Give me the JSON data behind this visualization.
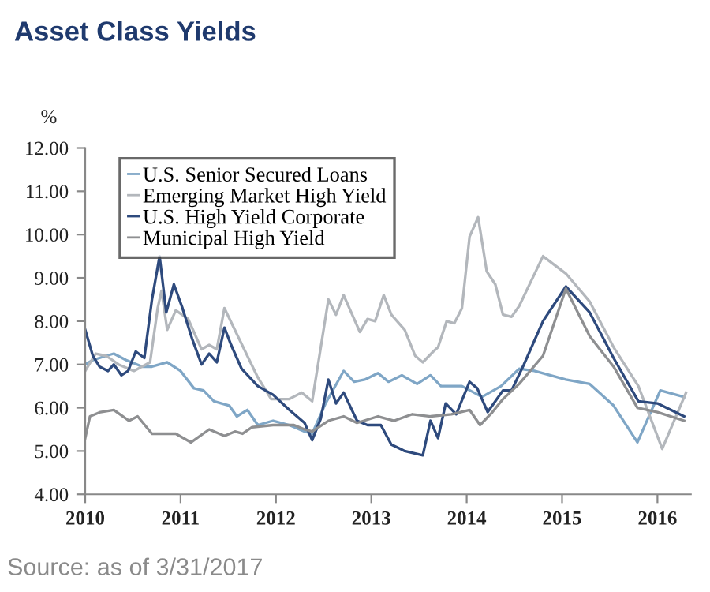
{
  "chart_data": {
    "type": "line",
    "title": "Asset Class Yields",
    "ylabel": "%",
    "annotations": [
      "Source: as of 3/31/2017"
    ],
    "xlim": [
      2010,
      2016.35
    ],
    "xticks": [
      2010,
      2011,
      2012,
      2013,
      2014,
      2015,
      2016
    ],
    "ylim": [
      4,
      12
    ],
    "yticks": [
      {
        "value": 4,
        "label": "4.00"
      },
      {
        "value": 5,
        "label": "5.00"
      },
      {
        "value": 6,
        "label": "6.00"
      },
      {
        "value": 7,
        "label": "7.00"
      },
      {
        "value": 8,
        "label": "8.00"
      },
      {
        "value": 9,
        "label": "9.00"
      },
      {
        "value": 10,
        "label": "10.00"
      },
      {
        "value": 11,
        "label": "11.00"
      },
      {
        "value": 12,
        "label": "12.00"
      }
    ],
    "grid": false,
    "legend": "top left",
    "marker": "none",
    "line_style": "solid",
    "series": [
      {
        "name": "U.S. Senior Secured Loans",
        "color": "#7fa6c6",
        "x": [
          2010.0,
          2010.08,
          2010.22,
          2010.3,
          2010.43,
          2010.6,
          2010.7,
          2010.78,
          2010.86,
          2011.0,
          2011.14,
          2011.24,
          2011.35,
          2011.51,
          2011.59,
          2011.7,
          2011.81,
          2011.97,
          2012.14,
          2012.3,
          2012.38,
          2012.52,
          2012.71,
          2012.82,
          2012.93,
          2013.07,
          2013.18,
          2013.32,
          2013.48,
          2013.62,
          2013.73,
          2013.95,
          2014.16,
          2014.36,
          2014.55,
          2014.71,
          2015.04,
          2015.29,
          2015.54,
          2015.79,
          2016.03,
          2016.28
        ],
        "values": [
          7.0,
          7.1,
          7.2,
          7.25,
          7.1,
          6.95,
          6.95,
          7.0,
          7.05,
          6.85,
          6.45,
          6.4,
          6.15,
          6.05,
          5.8,
          5.95,
          5.6,
          5.7,
          5.6,
          5.45,
          5.4,
          6.1,
          6.85,
          6.6,
          6.65,
          6.8,
          6.6,
          6.75,
          6.55,
          6.75,
          6.5,
          6.5,
          6.25,
          6.5,
          6.9,
          6.85,
          6.65,
          6.55,
          6.05,
          5.2,
          6.4,
          6.25
        ]
      },
      {
        "name": "Emerging Market High Yield",
        "color": "#b3b7bc",
        "x": [
          2010.0,
          2010.11,
          2010.22,
          2010.35,
          2010.51,
          2010.68,
          2010.76,
          2010.8,
          2010.86,
          2010.95,
          2011.08,
          2011.22,
          2011.3,
          2011.38,
          2011.46,
          2011.59,
          2011.7,
          2011.81,
          2011.95,
          2012.14,
          2012.27,
          2012.38,
          2012.55,
          2012.63,
          2012.71,
          2012.88,
          2012.96,
          2013.04,
          2013.13,
          2013.21,
          2013.35,
          2013.46,
          2013.54,
          2013.65,
          2013.7,
          2013.79,
          2013.87,
          2013.95,
          2014.03,
          2014.12,
          2014.21,
          2014.3,
          2014.38,
          2014.47,
          2014.55,
          2014.8,
          2015.04,
          2015.29,
          2015.54,
          2015.8,
          2016.05,
          2016.3
        ],
        "values": [
          6.85,
          7.25,
          7.2,
          7.0,
          6.85,
          7.05,
          8.3,
          8.7,
          7.8,
          8.25,
          8.05,
          7.35,
          7.45,
          7.35,
          8.3,
          7.7,
          7.2,
          6.7,
          6.2,
          6.2,
          6.35,
          6.15,
          8.5,
          8.15,
          8.6,
          7.75,
          8.05,
          8.0,
          8.6,
          8.15,
          7.8,
          7.2,
          7.05,
          7.3,
          7.4,
          8.0,
          7.95,
          8.3,
          9.95,
          10.4,
          9.15,
          8.85,
          8.15,
          8.1,
          8.35,
          9.5,
          9.1,
          8.45,
          7.4,
          6.5,
          5.05,
          6.35
        ]
      },
      {
        "name": "U.S. High Yield Corporate",
        "color": "#2e4a7d",
        "x": [
          2010.0,
          2010.08,
          2010.15,
          2010.24,
          2010.3,
          2010.38,
          2010.45,
          2010.53,
          2010.62,
          2010.7,
          2010.78,
          2010.85,
          2010.93,
          2011.02,
          2011.12,
          2011.22,
          2011.3,
          2011.38,
          2011.46,
          2011.53,
          2011.64,
          2011.81,
          2011.97,
          2012.14,
          2012.3,
          2012.38,
          2012.47,
          2012.55,
          2012.63,
          2012.71,
          2012.85,
          2012.96,
          2013.1,
          2013.21,
          2013.35,
          2013.54,
          2013.62,
          2013.7,
          2013.78,
          2013.89,
          2014.03,
          2014.11,
          2014.22,
          2014.38,
          2014.47,
          2014.6,
          2014.8,
          2015.04,
          2015.29,
          2015.54,
          2015.8,
          2016.0,
          2016.14,
          2016.28
        ],
        "values": [
          7.8,
          7.2,
          6.95,
          6.85,
          7.0,
          6.75,
          6.85,
          7.3,
          7.15,
          8.5,
          9.5,
          8.2,
          8.85,
          8.3,
          7.6,
          7.0,
          7.25,
          7.05,
          7.85,
          7.45,
          6.9,
          6.5,
          6.3,
          5.95,
          5.65,
          5.25,
          5.75,
          6.65,
          6.1,
          6.35,
          5.7,
          5.6,
          5.6,
          5.15,
          5.0,
          4.9,
          5.7,
          5.3,
          6.1,
          5.85,
          6.6,
          6.45,
          5.9,
          6.4,
          6.4,
          7.0,
          8.0,
          8.8,
          8.2,
          7.15,
          6.15,
          6.1,
          5.95,
          5.8
        ]
      },
      {
        "name": "Municipal High Yield",
        "color": "#8e8f91",
        "x": [
          2010.0,
          2010.05,
          2010.16,
          2010.3,
          2010.46,
          2010.55,
          2010.7,
          2010.81,
          2010.95,
          2011.11,
          2011.3,
          2011.46,
          2011.57,
          2011.65,
          2011.75,
          2011.97,
          2012.19,
          2012.3,
          2012.38,
          2012.55,
          2012.71,
          2012.85,
          2013.07,
          2013.24,
          2013.43,
          2013.62,
          2013.84,
          2014.03,
          2014.14,
          2014.27,
          2014.38,
          2014.55,
          2014.8,
          2015.04,
          2015.29,
          2015.54,
          2015.79,
          2016.0,
          2016.28
        ],
        "values": [
          5.3,
          5.8,
          5.9,
          5.95,
          5.7,
          5.8,
          5.4,
          5.4,
          5.4,
          5.2,
          5.5,
          5.35,
          5.45,
          5.4,
          5.55,
          5.6,
          5.6,
          5.5,
          5.45,
          5.7,
          5.8,
          5.65,
          5.8,
          5.7,
          5.85,
          5.8,
          5.85,
          5.95,
          5.6,
          5.9,
          6.2,
          6.55,
          7.2,
          8.75,
          7.65,
          6.95,
          6.0,
          5.9,
          5.7
        ]
      }
    ]
  }
}
